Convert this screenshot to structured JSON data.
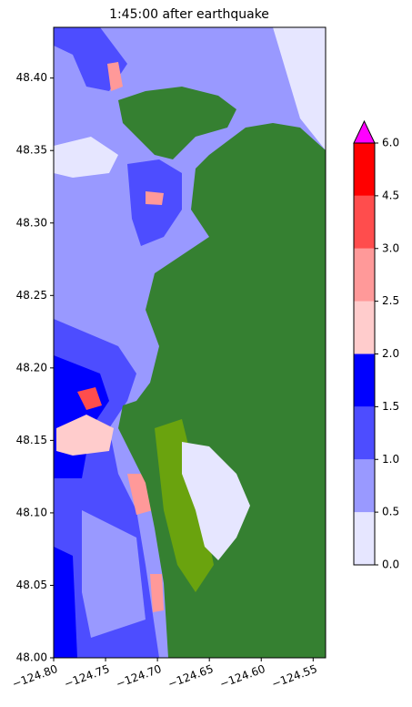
{
  "chart_data": {
    "type": "contourf",
    "title": "1:45:00 after earthquake",
    "xlim": [
      -124.8,
      -124.538
    ],
    "ylim": [
      48.0,
      48.435
    ],
    "xticks": [
      {
        "value": -124.8,
        "label": "−124.80"
      },
      {
        "value": -124.75,
        "label": "−124.75"
      },
      {
        "value": -124.7,
        "label": "−124.70"
      },
      {
        "value": -124.65,
        "label": "−124.65"
      },
      {
        "value": -124.6,
        "label": "−124.60"
      },
      {
        "value": -124.55,
        "label": "−124.55"
      }
    ],
    "yticks": [
      {
        "value": 48.0,
        "label": "48.00"
      },
      {
        "value": 48.05,
        "label": "48.05"
      },
      {
        "value": 48.1,
        "label": "48.10"
      },
      {
        "value": 48.15,
        "label": "48.15"
      },
      {
        "value": 48.2,
        "label": "48.20"
      },
      {
        "value": 48.25,
        "label": "48.25"
      },
      {
        "value": 48.3,
        "label": "48.30"
      },
      {
        "value": 48.35,
        "label": "48.35"
      },
      {
        "value": 48.4,
        "label": "48.40"
      }
    ],
    "colorbar": {
      "levels": [
        0,
        0.5,
        1,
        1.5,
        2,
        2.5,
        3,
        4.5,
        6
      ],
      "colors": [
        "#e6e6ff",
        "#9999ff",
        "#4d4dff",
        "#0000ff",
        "#ffcccc",
        "#ff9999",
        "#ff4d4d",
        "#ff0000"
      ],
      "extend_color": "#ff00ff",
      "ticks": [
        {
          "value": 0,
          "label": "0.0"
        },
        {
          "value": 0.5,
          "label": "0.5"
        },
        {
          "value": 1,
          "label": "1.0"
        },
        1.5,
        {
          "value": 2,
          "label": "2.0"
        },
        2.5,
        {
          "value": 3,
          "label": "3.0"
        },
        4.5,
        {
          "value": 6,
          "label": "6.0"
        }
      ]
    }
  }
}
